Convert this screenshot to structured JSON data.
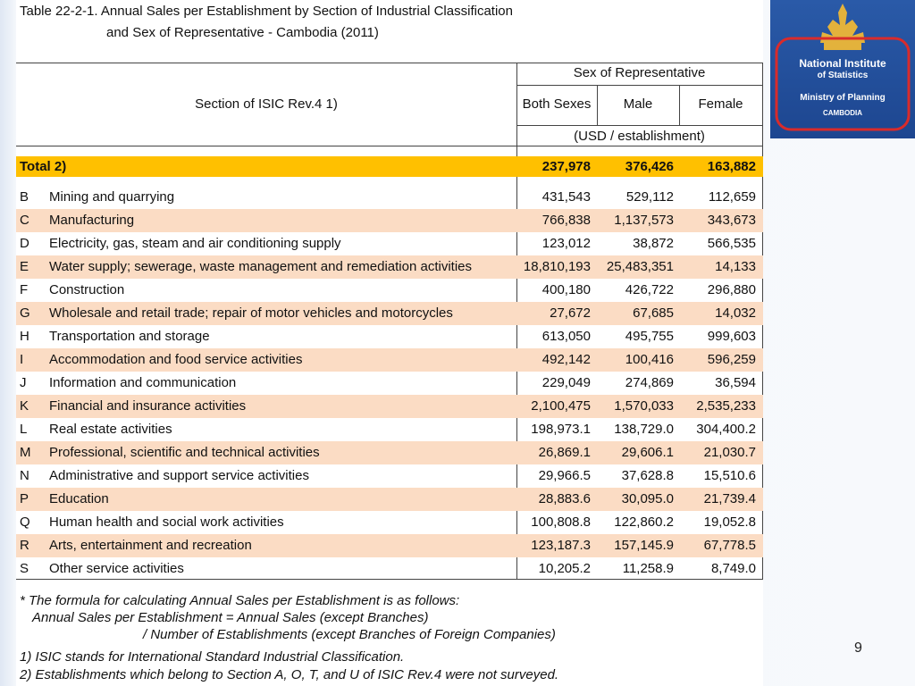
{
  "title": {
    "line1": "Table 22-2-1. Annual Sales per Establishment by Section of Industrial Classification",
    "line2": "and Sex of Representative - Cambodia (2011)"
  },
  "header": {
    "section": "Section of ISIC Rev.4  1)",
    "group": "Sex of Representative",
    "columns": [
      "Both Sexes",
      "Male",
      "Female"
    ],
    "unit": "(USD / establishment)"
  },
  "total": [
    "Total  2)",
    "237,978",
    "376,426",
    "163,882"
  ],
  "table": {
    "rows": [
      [
        "B",
        "Mining and quarrying",
        "431,543",
        "529,112",
        "112,659"
      ],
      [
        "C",
        "Manufacturing",
        "766,838",
        "1,137,573",
        "343,673"
      ],
      [
        "D",
        "Electricity, gas, steam and air conditioning supply",
        "123,012",
        "38,872",
        "566,535"
      ],
      [
        "E",
        "Water supply; sewerage, waste management and remediation activities",
        "18,810,193",
        "25,483,351",
        "14,133"
      ],
      [
        "F",
        "Construction",
        "400,180",
        "426,722",
        "296,880"
      ],
      [
        "G",
        "Wholesale and retail trade; repair of motor vehicles and motorcycles",
        "27,672",
        "67,685",
        "14,032"
      ],
      [
        "H",
        "Transportation and storage",
        "613,050",
        "495,755",
        "999,603"
      ],
      [
        "I",
        "Accommodation and food service activities",
        "492,142",
        "100,416",
        "596,259"
      ],
      [
        "J",
        "Information and communication",
        "229,049",
        "274,869",
        "36,594"
      ],
      [
        "K",
        "Financial and insurance activities",
        "2,100,475",
        "1,570,033",
        "2,535,233"
      ],
      [
        "L",
        "Real estate activities",
        "198,973.1",
        "138,729.0",
        "304,400.2"
      ],
      [
        "M",
        "Professional, scientific and technical activities",
        "26,869.1",
        "29,606.1",
        "21,030.7"
      ],
      [
        "N",
        "Administrative and support service activities",
        "29,966.5",
        "37,628.8",
        "15,510.6"
      ],
      [
        "P",
        "Education",
        "28,883.6",
        "30,095.0",
        "21,739.4"
      ],
      [
        "Q",
        "Human health and social work activities",
        "100,808.8",
        "122,860.2",
        "19,052.8"
      ],
      [
        "R",
        "Arts, entertainment and recreation",
        "123,187.3",
        "157,145.9",
        "67,778.5"
      ],
      [
        "S",
        "Other service activities",
        "10,205.2",
        "11,258.9",
        "8,749.0"
      ]
    ]
  },
  "notes": [
    "* The formula for calculating Annual Sales per Establishment is as follows:",
    "Annual Sales per Establishment = Annual Sales (except Branches)",
    "/ Number of Establishments (except Branches of Foreign Companies)",
    "1) ISIC stands for International Standard Industrial Classification.",
    "2) Establishments which belong to Section A, O, T, and U of ISIC Rev.4 were not surveyed."
  ],
  "logo": {
    "line1": "National Institute",
    "line2": "of Statistics",
    "line3": "Ministry of Planning",
    "line4": "CAMBODIA"
  },
  "page_number": "9"
}
